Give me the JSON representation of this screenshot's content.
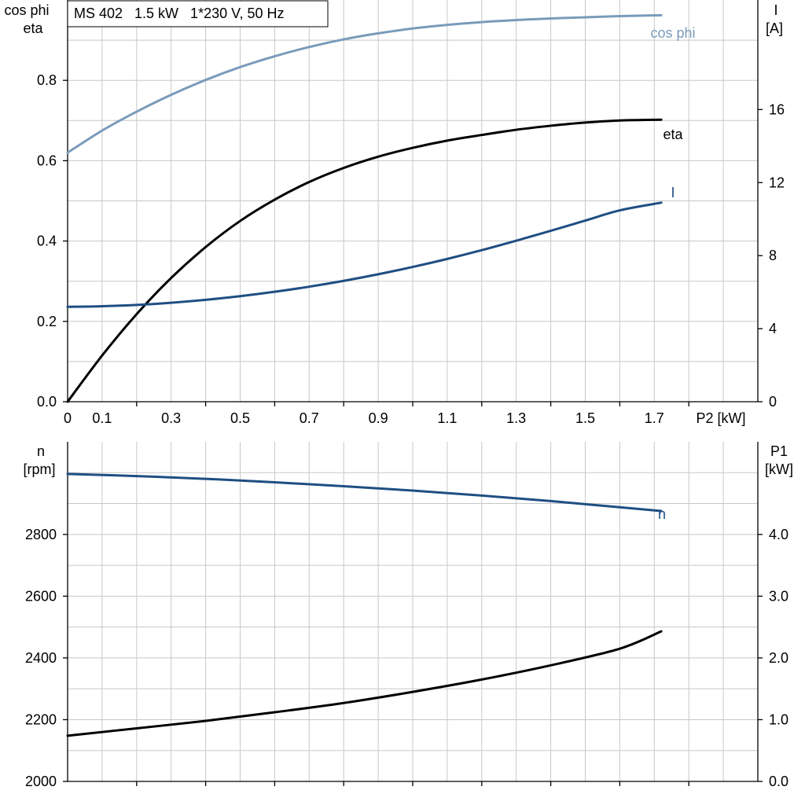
{
  "title": "MS 402   1.5 kW   1*230 V, 50 Hz",
  "colors": {
    "cosphi": "#7a9bbb",
    "eta": "#000000",
    "current": "#1f4e82",
    "speed": "#1f4e82",
    "p1": "#000000",
    "grid": "#c8c8c8"
  },
  "chart_data": [
    {
      "type": "line",
      "grid": true,
      "xlabel": "P2 [kW]",
      "xlim": [
        0,
        2.0
      ],
      "x_ticks": [
        "0",
        "0.1",
        "0.3",
        "0.5",
        "0.7",
        "0.9",
        "1.1",
        "1.3",
        "1.5",
        "1.7"
      ],
      "left_axis": {
        "label_line1": "cos phi",
        "label_line2": "eta",
        "ylim": [
          0.0,
          1.0
        ],
        "ticks": [
          "0.0",
          "0.2",
          "0.4",
          "0.6",
          "0.8"
        ]
      },
      "right_axis": {
        "label_line1": "I",
        "label_line2": "[A]",
        "ylim": [
          0,
          22
        ],
        "ticks": [
          "0",
          "4",
          "8",
          "12",
          "16"
        ]
      },
      "series": [
        {
          "name": "cos phi",
          "axis": "left",
          "x": [
            0,
            0.1,
            0.2,
            0.3,
            0.4,
            0.5,
            0.6,
            0.7,
            0.8,
            0.9,
            1.0,
            1.1,
            1.2,
            1.3,
            1.4,
            1.5,
            1.6,
            1.72
          ],
          "y": [
            0.62,
            0.675,
            0.722,
            0.764,
            0.801,
            0.833,
            0.86,
            0.883,
            0.902,
            0.917,
            0.929,
            0.938,
            0.945,
            0.95,
            0.954,
            0.957,
            0.96,
            0.962
          ]
        },
        {
          "name": "eta",
          "axis": "left",
          "x": [
            0,
            0.1,
            0.2,
            0.3,
            0.4,
            0.5,
            0.6,
            0.7,
            0.8,
            0.9,
            1.0,
            1.1,
            1.2,
            1.3,
            1.4,
            1.5,
            1.6,
            1.72
          ],
          "y": [
            0.0,
            0.115,
            0.218,
            0.308,
            0.385,
            0.45,
            0.503,
            0.547,
            0.582,
            0.61,
            0.632,
            0.65,
            0.664,
            0.677,
            0.687,
            0.695,
            0.7,
            0.702
          ]
        },
        {
          "name": "I",
          "axis": "right",
          "x": [
            0,
            0.1,
            0.2,
            0.3,
            0.4,
            0.5,
            0.6,
            0.7,
            0.8,
            0.9,
            1.0,
            1.1,
            1.2,
            1.3,
            1.4,
            1.5,
            1.6,
            1.72
          ],
          "y": [
            5.2,
            5.23,
            5.3,
            5.42,
            5.58,
            5.78,
            6.02,
            6.3,
            6.62,
            6.98,
            7.38,
            7.82,
            8.3,
            8.82,
            9.36,
            9.92,
            10.48,
            10.9
          ]
        }
      ]
    },
    {
      "type": "line",
      "grid": true,
      "xlim": [
        0,
        2.0
      ],
      "left_axis": {
        "label_line1": "n",
        "label_line2": "[rpm]",
        "ylim": [
          2000,
          3100
        ],
        "ticks": [
          "2000",
          "2200",
          "2400",
          "2600",
          "2800"
        ]
      },
      "right_axis": {
        "label_line1": "P1",
        "label_line2": "[kW]",
        "ylim": [
          0.0,
          5.5
        ],
        "ticks": [
          "0.0",
          "1.0",
          "2.0",
          "3.0",
          "4.0"
        ]
      },
      "series": [
        {
          "name": "n",
          "axis": "left",
          "x": [
            0,
            0.2,
            0.4,
            0.6,
            0.8,
            1.0,
            1.2,
            1.4,
            1.6,
            1.72
          ],
          "y": [
            2996,
            2989,
            2980,
            2969,
            2956,
            2942,
            2926,
            2908,
            2888,
            2876
          ]
        },
        {
          "axis": "right",
          "x": [
            0,
            0.2,
            0.4,
            0.6,
            0.8,
            1.0,
            1.2,
            1.4,
            1.6,
            1.72
          ],
          "y": [
            0.74,
            0.86,
            0.98,
            1.12,
            1.27,
            1.45,
            1.65,
            1.88,
            2.15,
            2.43
          ]
        }
      ]
    }
  ]
}
